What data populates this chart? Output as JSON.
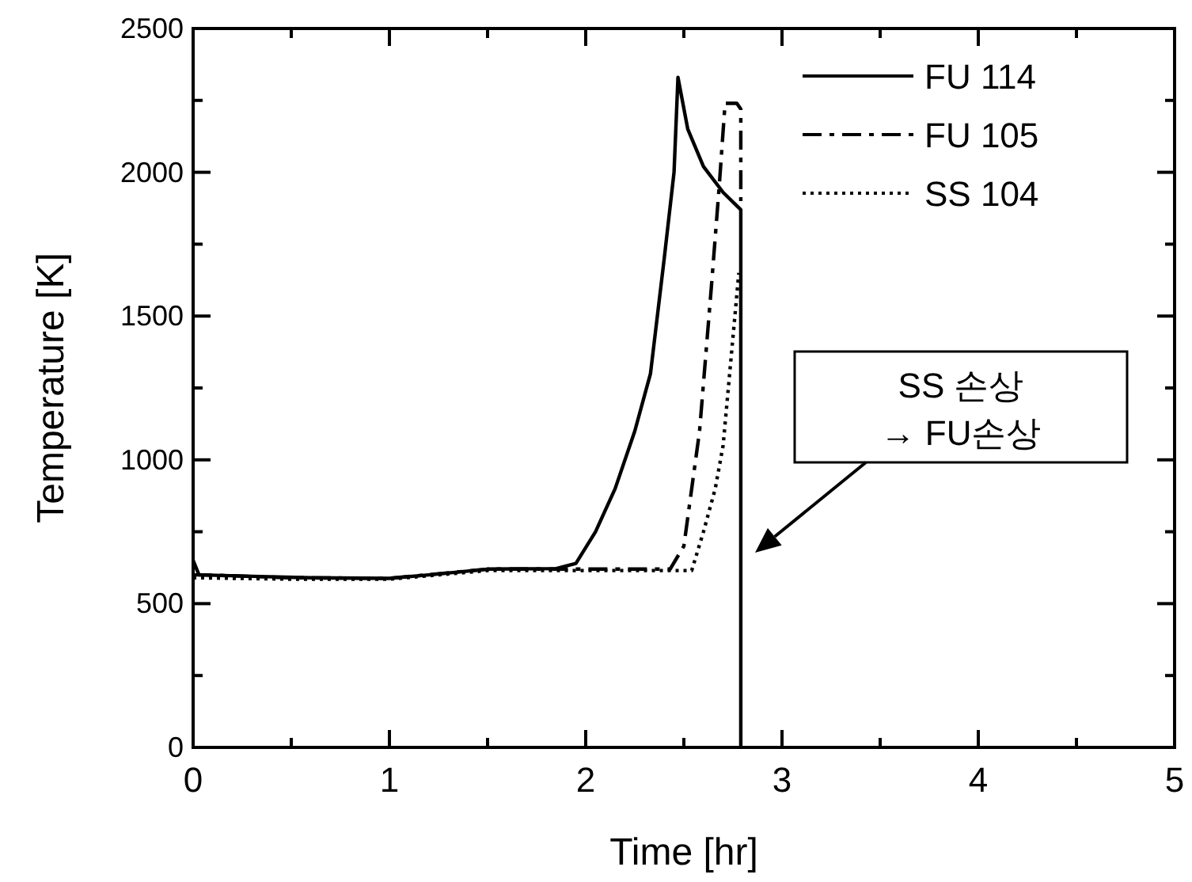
{
  "chart_data": {
    "type": "line",
    "xlabel": "Time [hr]",
    "ylabel": "Temperature [K]",
    "xlim": [
      0,
      5
    ],
    "ylim": [
      0,
      2500
    ],
    "xticks": [
      0,
      {
        "value": 0.5,
        "label": null
      },
      1,
      {
        "value": 1.5,
        "label": null
      },
      2,
      {
        "value": 2.5,
        "label": null
      },
      3,
      {
        "value": 3.5,
        "label": null
      },
      4,
      {
        "value": 4.5,
        "label": null
      },
      5
    ],
    "yticks": [
      0,
      {
        "value": 250,
        "label": null
      },
      500,
      {
        "value": 750,
        "label": null
      },
      1000,
      {
        "value": 1250,
        "label": null
      },
      1500,
      {
        "value": 1750,
        "label": null
      },
      2000,
      {
        "value": 2250,
        "label": null
      },
      2500
    ],
    "grid": false,
    "legend": "top right",
    "marker": "none",
    "series": [
      {
        "name": "FU 114",
        "color": "#000000",
        "line_style": "solid",
        "x": [
          0,
          0.03,
          0.3,
          0.6,
          1.0,
          1.2,
          1.5,
          1.85,
          1.95,
          2.05,
          2.15,
          2.25,
          2.33,
          2.4,
          2.45,
          2.47,
          2.52,
          2.6,
          2.7,
          2.79,
          2.79
        ],
        "values": [
          650,
          600,
          595,
          590,
          588,
          600,
          620,
          622,
          640,
          750,
          900,
          1100,
          1300,
          1700,
          2000,
          2330,
          2150,
          2020,
          1930,
          1870,
          0
        ]
      },
      {
        "name": "FU 105",
        "color": "#000000",
        "line_style": "dashdot",
        "x": [
          0,
          0.05,
          0.5,
          1.0,
          1.5,
          2.0,
          2.43,
          2.5,
          2.58,
          2.64,
          2.68,
          2.71,
          2.77,
          2.79,
          2.79
        ],
        "values": [
          600,
          600,
          590,
          588,
          620,
          620,
          620,
          700,
          1100,
          1600,
          1950,
          2240,
          2240,
          2220,
          1900
        ]
      },
      {
        "name": "SS 104",
        "color": "#000000",
        "line_style": "dotted",
        "x": [
          0,
          0.5,
          1.0,
          1.5,
          2.0,
          2.54,
          2.6,
          2.66,
          2.7,
          2.74,
          2.78
        ],
        "values": [
          590,
          585,
          585,
          615,
          615,
          615,
          750,
          900,
          1050,
          1350,
          1650
        ]
      }
    ],
    "annotations": [
      "SS 손상\n→ FU손상"
    ]
  }
}
